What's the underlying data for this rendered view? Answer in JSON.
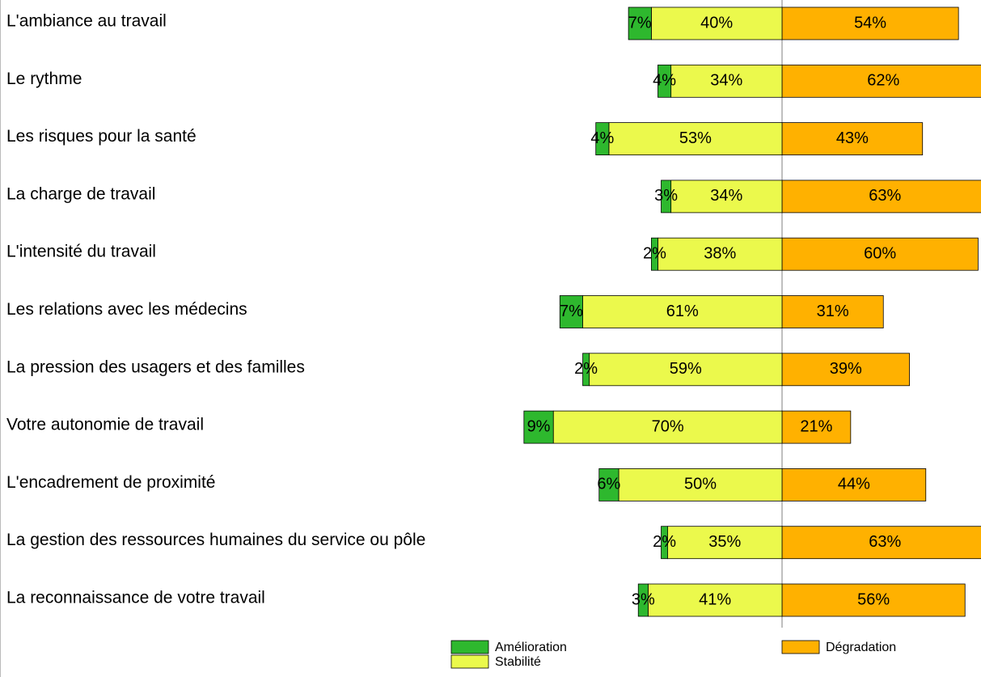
{
  "chart_data": {
    "type": "diverging_bar",
    "categories": [
      "L'ambiance au travail",
      "Le rythme",
      "Les risques pour la santé",
      "La charge de travail",
      "L'intensité du travail",
      "Les relations avec les médecins",
      "La pression des usagers et des familles",
      "Votre autonomie de travail",
      "L'encadrement de proximité",
      "La gestion des ressources humaines du service ou pôle",
      "La reconnaissance de votre travail"
    ],
    "series": [
      {
        "name": "Amélioration",
        "color": "#2eb82e",
        "values": [
          7,
          4,
          4,
          3,
          2,
          7,
          2,
          9,
          6,
          2,
          3
        ],
        "value_labels": [
          "7%",
          "4%",
          "4%",
          "3%",
          "2%",
          "7%",
          "2%",
          "9%",
          "6%",
          "2%",
          "3%"
        ]
      },
      {
        "name": "Stabilité",
        "color": "#ebf94c",
        "values": [
          40,
          34,
          53,
          34,
          38,
          61,
          59,
          70,
          50,
          35,
          41
        ],
        "value_labels": [
          "40%",
          "34%",
          "53%",
          "34%",
          "38%",
          "61%",
          "59%",
          "70%",
          "50%",
          "35%",
          "41%"
        ]
      },
      {
        "name": "Dégradation",
        "color": "#ffb100",
        "values": [
          54,
          62,
          43,
          63,
          60,
          31,
          39,
          21,
          44,
          63,
          56
        ],
        "value_labels": [
          "54%",
          "62%",
          "43%",
          "63%",
          "60%",
          "31%",
          "39%",
          "21%",
          "44%",
          "63%",
          "56%"
        ]
      }
    ]
  }
}
